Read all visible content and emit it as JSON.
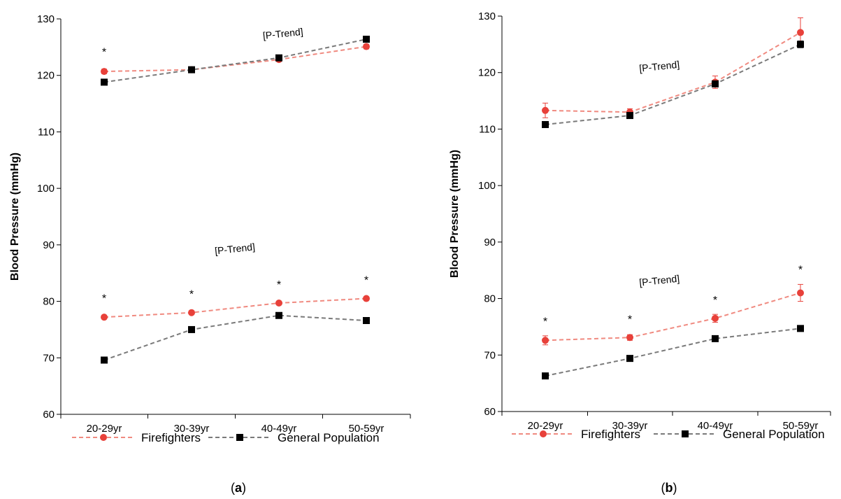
{
  "chart_data": [
    {
      "type": "line",
      "panel_label": "a",
      "ylabel": "Blood Pressure (mmHg)",
      "xlabel": "",
      "ylim": [
        60,
        130
      ],
      "yticks": [
        60,
        70,
        80,
        90,
        100,
        110,
        120,
        130
      ],
      "categories": [
        "20-29yr",
        "30-39yr",
        "40-49yr",
        "50-59yr"
      ],
      "legend_position": "bottom",
      "grid": false,
      "series": [
        {
          "name": "Firefighters",
          "group": "systolic",
          "color": "#e8413a",
          "marker": "circle",
          "values": [
            120.7,
            121.0,
            122.8,
            125.1
          ],
          "errors": [
            0.4,
            0.3,
            0.3,
            0.4
          ]
        },
        {
          "name": "General Population",
          "group": "systolic",
          "color": "#000000",
          "marker": "square",
          "values": [
            118.8,
            121.0,
            123.1,
            126.4
          ],
          "errors": [
            0.2,
            0.2,
            0.2,
            0.3
          ]
        },
        {
          "name": "Firefighters",
          "group": "diastolic",
          "color": "#e8413a",
          "marker": "circle",
          "values": [
            77.2,
            78.0,
            79.7,
            80.5
          ],
          "errors": [
            0.3,
            0.2,
            0.2,
            0.3
          ]
        },
        {
          "name": "General Population",
          "group": "diastolic",
          "color": "#000000",
          "marker": "square",
          "values": [
            69.6,
            75.0,
            77.5,
            76.6
          ],
          "errors": [
            0.2,
            0.2,
            0.2,
            0.3
          ]
        }
      ],
      "annotations": [
        {
          "text": "[P-Trend]",
          "x": 2.05,
          "y": 126.8
        },
        {
          "text": "[P-Trend]",
          "x": 1.5,
          "y": 88.7
        }
      ],
      "significance": [
        {
          "text": "*",
          "x": 0,
          "y": 123.5
        },
        {
          "text": "*",
          "x": 0,
          "y": 79.9
        },
        {
          "text": "*",
          "x": 1,
          "y": 80.6
        },
        {
          "text": "*",
          "x": 2,
          "y": 82.3
        },
        {
          "text": "*",
          "x": 3,
          "y": 83.1
        }
      ]
    },
    {
      "type": "line",
      "panel_label": "b",
      "ylabel": "Blood Pressure (mmHg)",
      "xlabel": "",
      "ylim": [
        60,
        130
      ],
      "yticks": [
        60,
        70,
        80,
        90,
        100,
        110,
        120,
        130
      ],
      "categories": [
        "20-29yr",
        "30-39yr",
        "40-49yr",
        "50-59yr"
      ],
      "legend_position": "bottom",
      "grid": false,
      "series": [
        {
          "name": "Firefighters",
          "group": "systolic",
          "color": "#e8413a",
          "marker": "circle",
          "values": [
            113.3,
            113.0,
            118.3,
            127.1
          ],
          "errors": [
            1.3,
            0.6,
            1.1,
            2.6
          ]
        },
        {
          "name": "General Population",
          "group": "systolic",
          "color": "#000000",
          "marker": "square",
          "values": [
            110.8,
            112.4,
            118.0,
            125.0
          ],
          "errors": [
            0.3,
            0.3,
            0.5,
            0.6
          ]
        },
        {
          "name": "Firefighters",
          "group": "diastolic",
          "color": "#e8413a",
          "marker": "circle",
          "values": [
            72.6,
            73.1,
            76.5,
            81.0
          ],
          "errors": [
            0.8,
            0.5,
            0.7,
            1.5
          ]
        },
        {
          "name": "General Population",
          "group": "diastolic",
          "color": "#000000",
          "marker": "square",
          "values": [
            66.3,
            69.4,
            72.9,
            74.7
          ],
          "errors": [
            0.2,
            0.2,
            0.3,
            0.3
          ]
        }
      ],
      "annotations": [
        {
          "text": "[P-Trend]",
          "x": 1.35,
          "y": 120.5
        },
        {
          "text": "[P-Trend]",
          "x": 1.35,
          "y": 82.6
        }
      ],
      "significance": [
        {
          "text": "*",
          "x": 0,
          "y": 75.3
        },
        {
          "text": "*",
          "x": 1,
          "y": 75.7
        },
        {
          "text": "*",
          "x": 2,
          "y": 79.1
        },
        {
          "text": "*",
          "x": 3,
          "y": 84.5
        }
      ]
    }
  ]
}
